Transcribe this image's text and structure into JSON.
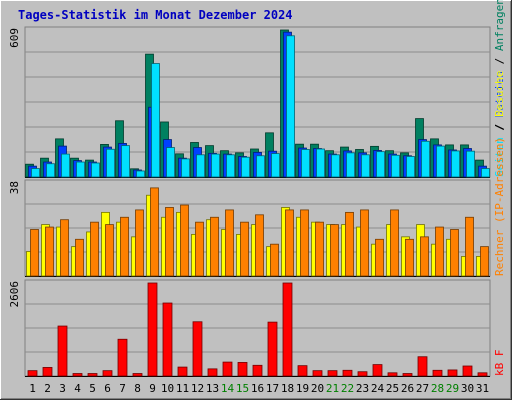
{
  "title": "Tages-Statistik im Monat Dezember 2024",
  "colors": {
    "background": "#c0c0c0",
    "title": "#0000c0",
    "hits": "#008060",
    "files": "#0040ff",
    "pages": "#00e0ff",
    "visits": "#ffff00",
    "sites": "#ff8000",
    "kbytes": "#ff0000",
    "weekday_label": "#008040",
    "weekend_label": "#008000"
  },
  "panels": {
    "top": {
      "ymax_label": "609",
      "legend": [
        "Anfragen",
        " / ",
        "Dateien",
        " / ",
        "Seiten"
      ]
    },
    "middle": {
      "ymax_label": "38",
      "legend": [
        "Besuche",
        " / ",
        "Rechner (IP-Adressen)"
      ]
    },
    "bottom": {
      "ymax_label": "2606",
      "legend": [
        "kB F"
      ]
    }
  },
  "chart_data": {
    "type": "bar",
    "categories": [
      "1",
      "2",
      "3",
      "4",
      "5",
      "6",
      "7",
      "8",
      "9",
      "10",
      "11",
      "12",
      "13",
      "14",
      "15",
      "16",
      "17",
      "18",
      "19",
      "20",
      "21",
      "22",
      "23",
      "24",
      "25",
      "26",
      "27",
      "28",
      "29",
      "30",
      "31"
    ],
    "weekend_days": [
      "14",
      "15",
      "21",
      "22",
      "28",
      "29"
    ],
    "panels": [
      {
        "name": "top",
        "ylim": [
          0,
          609
        ],
        "series": [
          {
            "name": "Anfragen",
            "color": "#008060",
            "values": [
              53,
              78,
              158,
              78,
              70,
              135,
              233,
              34,
              509,
              228,
              96,
              143,
              130,
              109,
              100,
              116,
              183,
              609,
              136,
              136,
              109,
              124,
              114,
              127,
              109,
              100,
              242,
              158,
              133,
              133,
              70
            ]
          },
          {
            "name": "Dateien",
            "color": "#0040ff",
            "values": [
              45,
              62,
              128,
              68,
              62,
              124,
              139,
              29,
              289,
              155,
              78,
              122,
              98,
              95,
              85,
              102,
              107,
              600,
              120,
              118,
              95,
              108,
              100,
              110,
              95,
              88,
              155,
              133,
              112,
              118,
              45
            ]
          },
          {
            "name": "Seiten",
            "color": "#00e0ff",
            "values": [
              35,
              55,
              95,
              62,
              58,
              115,
              130,
              25,
              470,
              122,
              75,
              92,
              95,
              92,
              82,
              88,
              97,
              585,
              114,
              116,
              92,
              100,
              92,
              105,
              90,
              85,
              148,
              128,
              108,
              107,
              35
            ]
          }
        ]
      },
      {
        "name": "middle",
        "ylim": [
          0,
          38
        ],
        "series": [
          {
            "name": "Besuche",
            "color": "#ffff00",
            "values": [
              10,
              21,
              20,
              12,
              18,
              26,
              22,
              16,
              33,
              24,
              26,
              17,
              23,
              19,
              17,
              21,
              12,
              28,
              24,
              22,
              21,
              21,
              20,
              13,
              21,
              16,
              21,
              13,
              15,
              8,
              8
            ]
          },
          {
            "name": "Rechner (IP-Adressen)",
            "color": "#ff8000",
            "values": [
              19,
              20,
              23,
              15,
              22,
              21,
              24,
              27,
              36,
              28,
              29,
              22,
              24,
              27,
              22,
              25,
              13,
              27,
              27,
              22,
              21,
              26,
              27,
              15,
              27,
              15,
              16,
              20,
              19,
              24,
              12
            ]
          }
        ]
      },
      {
        "name": "bottom",
        "ylim": [
          0,
          2606
        ],
        "series": [
          {
            "name": "kB F",
            "color": "#ff0000",
            "values": [
              150,
              240,
              1400,
              70,
              70,
              150,
              1030,
              70,
              2606,
              2045,
              250,
              1520,
              200,
              390,
              380,
              300,
              1510,
              2606,
              290,
              150,
              150,
              160,
              120,
              320,
              90,
              70,
              540,
              160,
              170,
              280,
              90
            ]
          }
        ]
      }
    ]
  }
}
